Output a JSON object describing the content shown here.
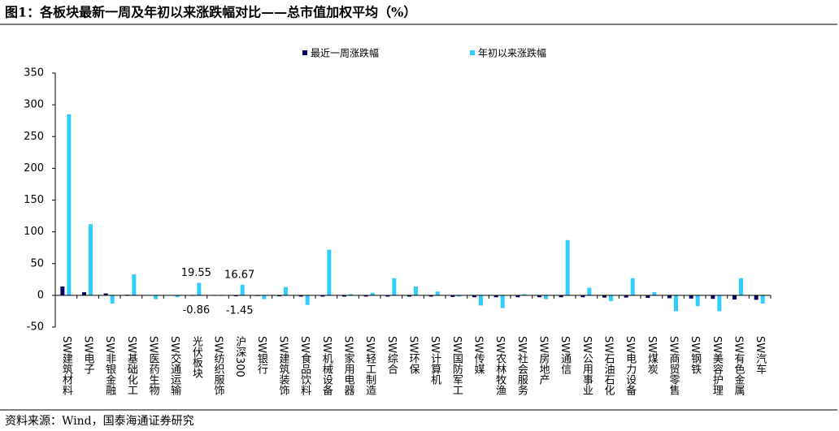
{
  "chart_data": {
    "type": "bar",
    "title": "图1：各板块最新一周及年初以来涨跌幅对比——总市值加权平均（%）",
    "source": "资料来源：Wind，国泰海通证券研究",
    "categories": [
      "SW建筑材料",
      "SW电子",
      "SW非银金融",
      "SW基础化工",
      "SW医药生物",
      "SW交通运输",
      "光伏板块",
      "SW纺织服饰",
      "沪深300",
      "SW银行",
      "SW建筑装饰",
      "SW食品饮料",
      "SW机械设备",
      "SW家用电器",
      "SW轻工制造",
      "SW综合",
      "SW环保",
      "SW计算机",
      "SW国防军工",
      "SW传媒",
      "SW农林牧渔",
      "SW社会服务",
      "SW房地产",
      "SW通信",
      "SW公用事业",
      "SW石油石化",
      "SW电力设备",
      "SW煤炭",
      "SW商贸零售",
      "SW钢铁",
      "SW美容护理",
      "SW有色金属",
      "SW汽车"
    ],
    "series": [
      {
        "name": "最近一周涨跌幅",
        "color": "#000066",
        "values": [
          14,
          5,
          3,
          1,
          0.5,
          0.5,
          -0.86,
          -0.5,
          -1.45,
          -1,
          -1.5,
          -2,
          -2,
          -2,
          -2,
          -2,
          -2,
          -2,
          -2.5,
          -3,
          -3,
          -3,
          -3,
          -3,
          -3,
          -3.5,
          -3.5,
          -4,
          -4.5,
          -5,
          -5.5,
          -6.5,
          -7
        ],
        "value_labels": [
          null,
          null,
          null,
          null,
          null,
          null,
          "-0.86",
          null,
          "-1.45",
          null,
          null,
          null,
          null,
          null,
          null,
          null,
          null,
          null,
          null,
          null,
          null,
          null,
          null,
          null,
          null,
          null,
          null,
          null,
          null,
          null,
          null,
          null,
          null
        ]
      },
      {
        "name": "年初以来涨跌幅",
        "color": "#33ccff",
        "values": [
          285,
          112,
          -13,
          33,
          -6,
          -3,
          19.55,
          -1,
          16.67,
          -6,
          13,
          -15,
          72,
          2,
          4,
          27,
          14,
          6,
          -2,
          -16,
          -20,
          2,
          -6,
          87,
          12,
          -9,
          27,
          5,
          -25,
          -17,
          -25,
          27,
          -13
        ],
        "value_labels": [
          null,
          null,
          null,
          null,
          null,
          null,
          "19.55",
          null,
          "16.67",
          null,
          null,
          null,
          null,
          null,
          null,
          null,
          null,
          null,
          null,
          null,
          null,
          null,
          null,
          null,
          null,
          null,
          null,
          null,
          null,
          null,
          null,
          null,
          null
        ]
      }
    ],
    "ylim": [
      -50,
      350
    ],
    "yticks": [
      -50,
      0,
      50,
      100,
      150,
      200,
      250,
      300,
      350
    ],
    "grid": false,
    "legend": "top"
  }
}
